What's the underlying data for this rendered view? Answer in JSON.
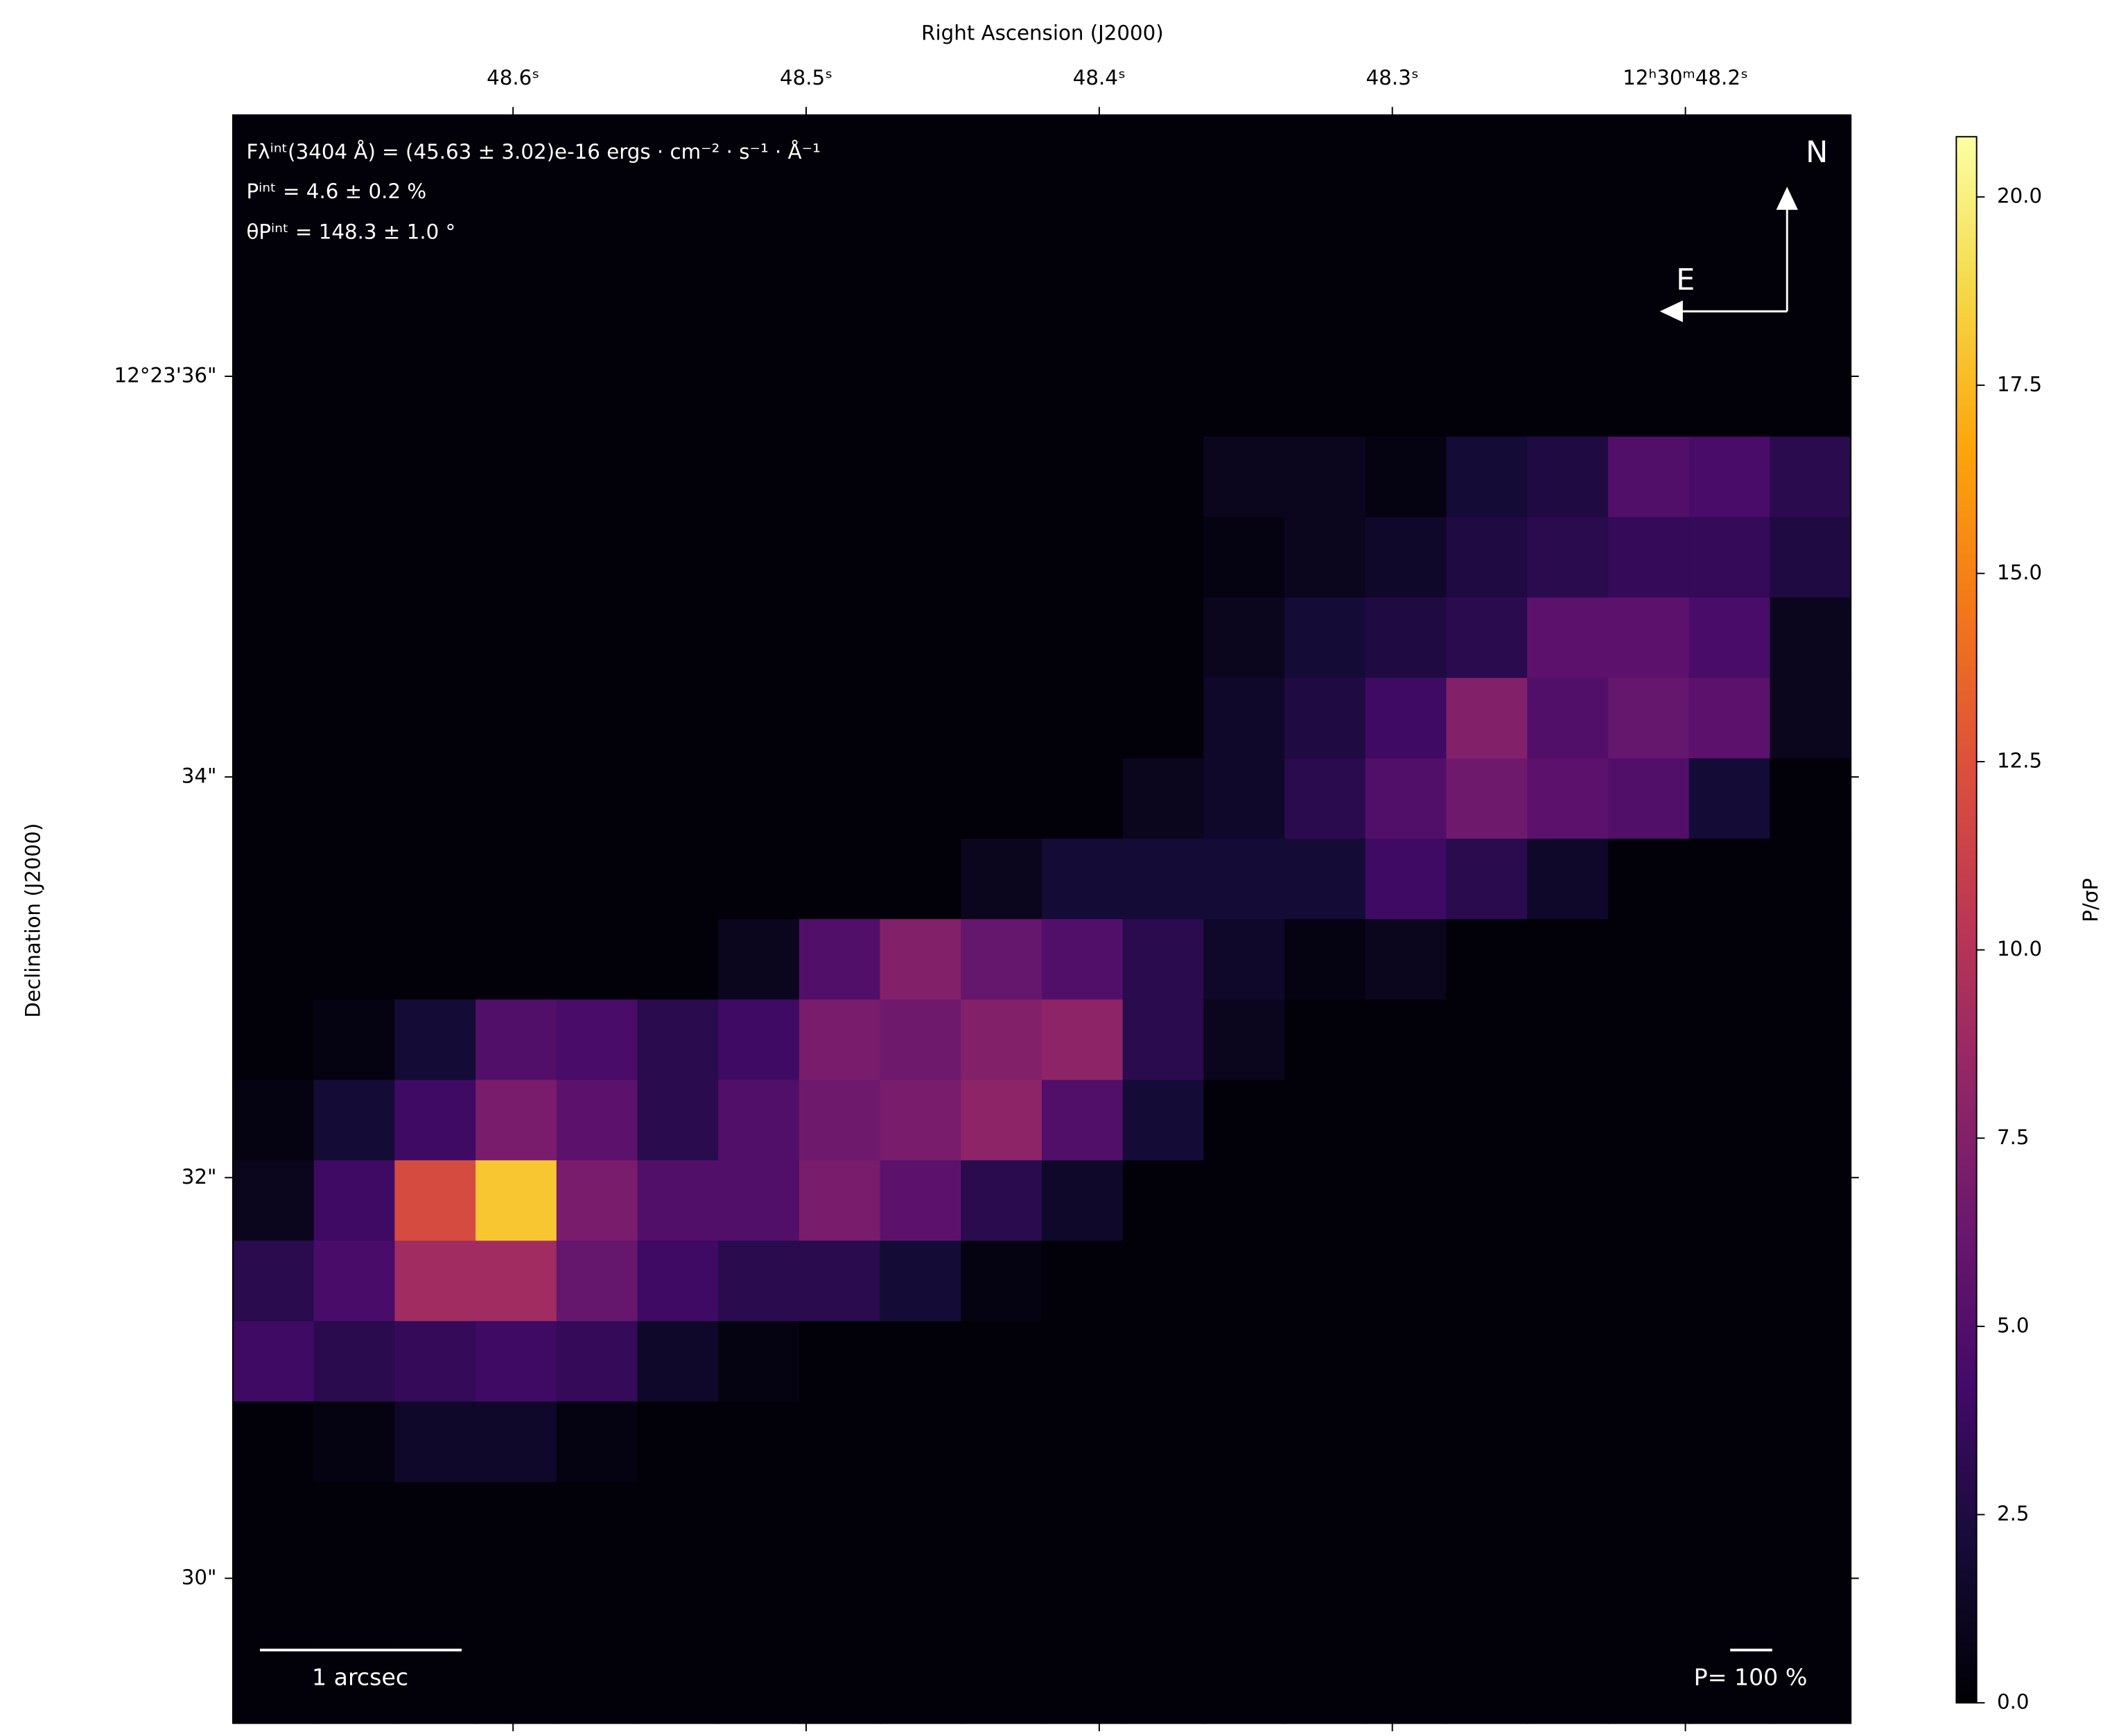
{
  "chart_data": {
    "type": "heatmap",
    "colormap": "inferno",
    "xlabel": "Right Ascension (J2000)",
    "ylabel": "Declination (J2000)",
    "xlim": [
      48.6956,
      48.1436
    ],
    "ylim": [
      29.277,
      37.304
    ],
    "xticks": [
      {
        "value": 48.6,
        "label": "48.6ˢ"
      },
      {
        "value": 48.5,
        "label": "48.5ˢ"
      },
      {
        "value": 48.4,
        "label": "48.4ˢ"
      },
      {
        "value": 48.3,
        "label": "48.3ˢ"
      },
      {
        "value": 48.2,
        "label": "12ʰ30ᵐ48.2ˢ"
      }
    ],
    "yticks": [
      {
        "value": 30,
        "label": "30\""
      },
      {
        "value": 32,
        "label": "32\""
      },
      {
        "value": 34,
        "label": "34\""
      },
      {
        "value": 36,
        "label": "12°23'36\""
      }
    ],
    "values": [
      [
        0.2,
        0.2,
        0.2,
        0.2,
        0.2,
        0.2,
        0.2,
        0.2,
        0.2,
        0.2,
        0.2,
        0.2,
        0.2,
        0.2,
        0.2,
        0.2,
        0.2,
        0.2,
        0.2,
        0.2
      ],
      [
        0.2,
        0.2,
        0.2,
        0.2,
        0.2,
        0.2,
        0.2,
        0.2,
        0.2,
        0.2,
        0.2,
        0.2,
        0.2,
        0.2,
        0.2,
        0.2,
        0.2,
        0.2,
        0.2,
        0.2
      ],
      [
        0.2,
        0.2,
        0.2,
        0.2,
        0.2,
        0.2,
        0.2,
        0.2,
        0.2,
        0.2,
        0.2,
        0.2,
        0.2,
        0.2,
        0.2,
        0.2,
        0.2,
        0.2,
        0.2,
        0.2
      ],
      [
        0.2,
        0.2,
        0.2,
        0.2,
        0.2,
        0.2,
        0.2,
        0.2,
        0.2,
        0.2,
        0.2,
        0.2,
        0.2,
        0.2,
        0.2,
        0.2,
        0.2,
        0.2,
        0.2,
        0.2
      ],
      [
        0.2,
        0.2,
        0.2,
        0.2,
        0.2,
        0.2,
        0.2,
        0.2,
        0.2,
        0.2,
        0.2,
        0.2,
        1,
        1,
        0.5,
        2,
        2.5,
        5,
        4.5,
        3
      ],
      [
        0.2,
        0.2,
        0.2,
        0.2,
        0.2,
        0.2,
        0.2,
        0.2,
        0.2,
        0.2,
        0.2,
        0.2,
        0.5,
        1,
        1.5,
        2.5,
        3,
        3.5,
        3.5,
        2.5
      ],
      [
        0.2,
        0.2,
        0.2,
        0.2,
        0.2,
        0.2,
        0.2,
        0.2,
        0.2,
        0.2,
        0.2,
        0.2,
        1,
        2,
        2.5,
        3,
        5.5,
        5.5,
        4.5,
        1
      ],
      [
        0.2,
        0.2,
        0.2,
        0.2,
        0.2,
        0.2,
        0.2,
        0.2,
        0.2,
        0.2,
        0.2,
        0.2,
        1.5,
        2.5,
        4,
        7.5,
        5,
        6,
        5.5,
        1
      ],
      [
        0.2,
        0.2,
        0.2,
        0.2,
        0.2,
        0.2,
        0.2,
        0.2,
        0.2,
        0.2,
        0.2,
        1,
        1.5,
        3,
        5,
        6.5,
        5.5,
        5,
        2,
        0.2
      ],
      [
        0.2,
        0.2,
        0.2,
        0.2,
        0.2,
        0.2,
        0.2,
        0.2,
        0.2,
        1,
        2,
        2,
        2,
        2,
        4,
        3,
        1.5,
        0.2,
        0.2,
        0.2
      ],
      [
        0.2,
        0.2,
        0.2,
        0.2,
        0.2,
        0.2,
        1,
        5,
        7.5,
        6,
        5,
        3,
        1.5,
        0.5,
        1,
        0.2,
        0.2,
        0.2,
        0.2,
        0.2
      ],
      [
        0.2,
        0.5,
        2,
        5,
        4.5,
        3,
        4,
        7,
        6.5,
        7.5,
        8,
        3,
        1,
        0.2,
        0.2,
        0.2,
        0.2,
        0.2,
        0.2,
        0.2
      ],
      [
        0.5,
        2,
        4,
        7,
        5.5,
        3,
        5,
        6.5,
        7,
        8,
        5,
        2,
        0.2,
        0.2,
        0.2,
        0.2,
        0.2,
        0.2,
        0.2,
        0.2
      ],
      [
        1,
        4,
        12,
        18,
        7,
        5,
        5,
        7,
        5.5,
        3,
        1.5,
        0.2,
        0.2,
        0.2,
        0.2,
        0.2,
        0.2,
        0.2,
        0.2,
        0.2
      ],
      [
        3,
        4.5,
        9,
        9,
        6,
        4,
        3,
        3,
        2,
        0.5,
        0.2,
        0.2,
        0.2,
        0.2,
        0.2,
        0.2,
        0.2,
        0.2,
        0.2,
        0.2
      ],
      [
        4,
        3,
        3.5,
        4,
        3.5,
        1.5,
        0.5,
        0.2,
        0.2,
        0.2,
        0.2,
        0.2,
        0.2,
        0.2,
        0.2,
        0.2,
        0.2,
        0.2,
        0.2,
        0.2
      ],
      [
        0.2,
        0.5,
        1.5,
        1.5,
        0.5,
        0.2,
        0.2,
        0.2,
        0.2,
        0.2,
        0.2,
        0.2,
        0.2,
        0.2,
        0.2,
        0.2,
        0.2,
        0.2,
        0.2,
        0.2
      ],
      [
        0.2,
        0.2,
        0.2,
        0.2,
        0.2,
        0.2,
        0.2,
        0.2,
        0.2,
        0.2,
        0.2,
        0.2,
        0.2,
        0.2,
        0.2,
        0.2,
        0.2,
        0.2,
        0.2,
        0.2
      ],
      [
        0.2,
        0.2,
        0.2,
        0.2,
        0.2,
        0.2,
        0.2,
        0.2,
        0.2,
        0.2,
        0.2,
        0.2,
        0.2,
        0.2,
        0.2,
        0.2,
        0.2,
        0.2,
        0.2,
        0.2
      ],
      [
        0.2,
        0.2,
        0.2,
        0.2,
        0.2,
        0.2,
        0.2,
        0.2,
        0.2,
        0.2,
        0.2,
        0.2,
        0.2,
        0.2,
        0.2,
        0.2,
        0.2,
        0.2,
        0.2,
        0.2
      ]
    ],
    "colorbar": {
      "label": "P/σP",
      "lim": [
        0,
        20.8
      ],
      "ticks": [
        {
          "value": 0,
          "label": "0.0"
        },
        2.5,
        {
          "value": 5,
          "label": "5.0"
        },
        7.5,
        {
          "value": 10,
          "label": "10.0"
        },
        12.5,
        {
          "value": 15,
          "label": "15.0"
        },
        17.5,
        {
          "value": 20,
          "label": "20.0"
        }
      ]
    },
    "annotations": [
      "Fλⁱⁿᵗ(3404 Å) = (45.63 ± 3.02)e-16 ergs · cm⁻² · s⁻¹ · Å⁻¹",
      "Pⁱⁿᵗ = 4.6 ± 0.2 %",
      "θPⁱⁿᵗ = 148.3 ± 1.0 °"
    ],
    "compass": {
      "north": "N",
      "east": "E"
    },
    "scalebar": "1 arcsec",
    "vector_scale": "P= 100 %"
  }
}
